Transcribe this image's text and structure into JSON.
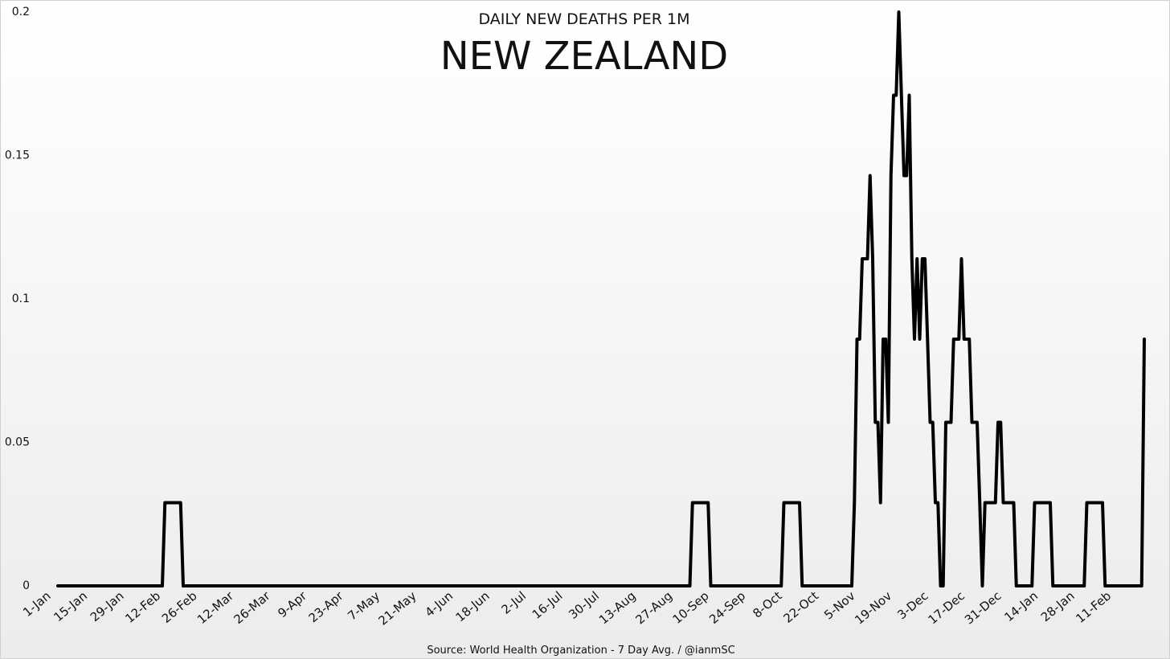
{
  "chart_data": {
    "type": "line",
    "subtitle": "DAILY NEW DEATHS PER 1M",
    "title": "NEW ZEALAND",
    "source": "Source: World Health Organization - 7 Day Avg. / @ianmSC",
    "color": "#000000",
    "ylim": [
      0,
      0.2
    ],
    "yticks": [
      0,
      0.05,
      0.1,
      0.15,
      0.2
    ],
    "categories": [
      "1-Jan",
      null,
      null,
      null,
      null,
      null,
      null,
      null,
      null,
      null,
      null,
      null,
      null,
      null,
      "15-Jan",
      null,
      null,
      null,
      null,
      null,
      null,
      null,
      null,
      null,
      null,
      null,
      null,
      null,
      "29-Jan",
      null,
      null,
      null,
      null,
      null,
      null,
      null,
      null,
      null,
      null,
      null,
      null,
      null,
      "12-Feb",
      null,
      null,
      null,
      null,
      null,
      null,
      null,
      null,
      null,
      null,
      null,
      null,
      null,
      "26-Feb",
      null,
      null,
      null,
      null,
      null,
      null,
      null,
      null,
      null,
      null,
      null,
      null,
      null,
      "12-Mar",
      null,
      null,
      null,
      null,
      null,
      null,
      null,
      null,
      null,
      null,
      null,
      null,
      null,
      "26-Mar",
      null,
      null,
      null,
      null,
      null,
      null,
      null,
      null,
      null,
      null,
      null,
      null,
      null,
      "9-Apr",
      null,
      null,
      null,
      null,
      null,
      null,
      null,
      null,
      null,
      null,
      null,
      null,
      null,
      "23-Apr",
      null,
      null,
      null,
      null,
      null,
      null,
      null,
      null,
      null,
      null,
      null,
      null,
      null,
      "7-May",
      null,
      null,
      null,
      null,
      null,
      null,
      null,
      null,
      null,
      null,
      null,
      null,
      null,
      "21-May",
      null,
      null,
      null,
      null,
      null,
      null,
      null,
      null,
      null,
      null,
      null,
      null,
      null,
      "4-Jun",
      null,
      null,
      null,
      null,
      null,
      null,
      null,
      null,
      null,
      null,
      null,
      null,
      null,
      "18-Jun",
      null,
      null,
      null,
      null,
      null,
      null,
      null,
      null,
      null,
      null,
      null,
      null,
      null,
      "2-Jul",
      null,
      null,
      null,
      null,
      null,
      null,
      null,
      null,
      null,
      null,
      null,
      null,
      null,
      "16-Jul",
      null,
      null,
      null,
      null,
      null,
      null,
      null,
      null,
      null,
      null,
      null,
      null,
      null,
      "30-Jul",
      null,
      null,
      null,
      null,
      null,
      null,
      null,
      null,
      null,
      null,
      null,
      null,
      null,
      "13-Aug",
      null,
      null,
      null,
      null,
      null,
      null,
      null,
      null,
      null,
      null,
      null,
      null,
      null,
      "27-Aug",
      null,
      null,
      null,
      null,
      null,
      null,
      null,
      null,
      null,
      null,
      null,
      null,
      null,
      "10-Sep",
      null,
      null,
      null,
      null,
      null,
      null,
      null,
      null,
      null,
      null,
      null,
      null,
      null,
      "24-Sep",
      null,
      null,
      null,
      null,
      null,
      null,
      null,
      null,
      null,
      null,
      null,
      null,
      null,
      "8-Oct",
      null,
      null,
      null,
      null,
      null,
      null,
      null,
      null,
      null,
      null,
      null,
      null,
      null,
      "22-Oct",
      null,
      null,
      null,
      null,
      null,
      null,
      null,
      null,
      null,
      null,
      null,
      null,
      null,
      "5-Nov",
      null,
      null,
      null,
      null,
      null,
      null,
      null,
      null,
      null,
      null,
      null,
      null,
      null,
      "19-Nov",
      null,
      null,
      null,
      null,
      null,
      null,
      null,
      null,
      null,
      null,
      null,
      null,
      null,
      "3-Dec",
      null,
      null,
      null,
      null,
      null,
      null,
      null,
      null,
      null,
      null,
      null,
      null,
      null,
      "17-Dec",
      null,
      null,
      null,
      null,
      null,
      null,
      null,
      null,
      null,
      null,
      null,
      null,
      null,
      "31-Dec",
      null,
      null,
      null,
      null,
      null,
      null,
      null,
      null,
      null,
      null,
      null,
      null,
      null,
      "14-Jan",
      null,
      null,
      null,
      null,
      null,
      null,
      null,
      null,
      null,
      null,
      null,
      null,
      null,
      "28-Jan",
      null,
      null,
      null,
      null,
      null,
      null,
      null,
      null,
      null,
      null,
      null,
      null,
      null,
      "11-Feb",
      null,
      null,
      null,
      null,
      null,
      null,
      null,
      null,
      null,
      null
    ],
    "values": [
      0,
      0,
      0,
      0,
      0,
      0,
      0,
      0,
      0,
      0,
      0,
      0,
      0,
      0,
      0,
      0,
      0,
      0,
      0,
      0,
      0,
      0,
      0,
      0,
      0,
      0,
      0,
      0,
      0,
      0,
      0,
      0,
      0,
      0,
      0,
      0,
      0,
      0,
      0,
      0,
      0,
      0.029,
      0.029,
      0.029,
      0.029,
      0.029,
      0.029,
      0.029,
      0,
      0,
      0,
      0,
      0,
      0,
      0,
      0,
      0,
      0,
      0,
      0,
      0,
      0,
      0,
      0,
      0,
      0,
      0,
      0,
      0,
      0,
      0,
      0,
      0,
      0,
      0,
      0,
      0,
      0,
      0,
      0,
      0,
      0,
      0,
      0,
      0,
      0,
      0,
      0,
      0,
      0,
      0,
      0,
      0,
      0,
      0,
      0,
      0,
      0,
      0,
      0,
      0,
      0,
      0,
      0,
      0,
      0,
      0,
      0,
      0,
      0,
      0,
      0,
      0,
      0,
      0,
      0,
      0,
      0,
      0,
      0,
      0,
      0,
      0,
      0,
      0,
      0,
      0,
      0,
      0,
      0,
      0,
      0,
      0,
      0,
      0,
      0,
      0,
      0,
      0,
      0,
      0,
      0,
      0,
      0,
      0,
      0,
      0,
      0,
      0,
      0,
      0,
      0,
      0,
      0,
      0,
      0,
      0,
      0,
      0,
      0,
      0,
      0,
      0,
      0,
      0,
      0,
      0,
      0,
      0,
      0,
      0,
      0,
      0,
      0,
      0,
      0,
      0,
      0,
      0,
      0,
      0,
      0,
      0,
      0,
      0,
      0,
      0,
      0,
      0,
      0,
      0,
      0,
      0,
      0,
      0,
      0,
      0,
      0,
      0,
      0,
      0,
      0,
      0,
      0,
      0,
      0,
      0,
      0,
      0,
      0,
      0,
      0,
      0,
      0,
      0,
      0,
      0,
      0,
      0,
      0,
      0,
      0,
      0,
      0,
      0,
      0,
      0,
      0,
      0,
      0,
      0,
      0,
      0,
      0,
      0,
      0,
      0,
      0,
      0,
      0,
      0,
      0,
      0,
      0.029,
      0.029,
      0.029,
      0.029,
      0.029,
      0.029,
      0.029,
      0,
      0,
      0,
      0,
      0,
      0,
      0,
      0,
      0,
      0,
      0,
      0,
      0,
      0,
      0,
      0,
      0,
      0,
      0,
      0,
      0,
      0,
      0,
      0,
      0,
      0,
      0,
      0,
      0.029,
      0.029,
      0.029,
      0.029,
      0.029,
      0.029,
      0.029,
      0,
      0,
      0,
      0,
      0,
      0,
      0,
      0,
      0,
      0,
      0,
      0,
      0,
      0,
      0,
      0,
      0,
      0,
      0,
      0,
      0.029,
      0.086,
      0.086,
      0.114,
      0.114,
      0.114,
      0.143,
      0.114,
      0.057,
      0.057,
      0.029,
      0.086,
      0.086,
      0.057,
      0.143,
      0.171,
      0.171,
      0.2,
      0.171,
      0.143,
      0.143,
      0.171,
      0.114,
      0.086,
      0.114,
      0.086,
      0.114,
      0.114,
      0.086,
      0.057,
      0.057,
      0.029,
      0.029,
      0,
      0,
      0.057,
      0.057,
      0.057,
      0.086,
      0.086,
      0.086,
      0.114,
      0.086,
      0.086,
      0.086,
      0.057,
      0.057,
      0.057,
      0.029,
      0,
      0.029,
      0.029,
      0.029,
      0.029,
      0.029,
      0.057,
      0.057,
      0.029,
      0.029,
      0.029,
      0.029,
      0.029,
      0,
      0,
      0,
      0,
      0,
      0,
      0,
      0.029,
      0.029,
      0.029,
      0.029,
      0.029,
      0.029,
      0.029,
      0,
      0,
      0,
      0,
      0,
      0,
      0,
      0,
      0,
      0,
      0,
      0,
      0,
      0.029,
      0.029,
      0.029,
      0.029,
      0.029,
      0.029,
      0.029,
      0,
      0,
      0,
      0,
      0,
      0,
      0,
      0,
      0,
      0,
      0,
      0,
      0,
      0,
      0,
      0.086
    ]
  }
}
